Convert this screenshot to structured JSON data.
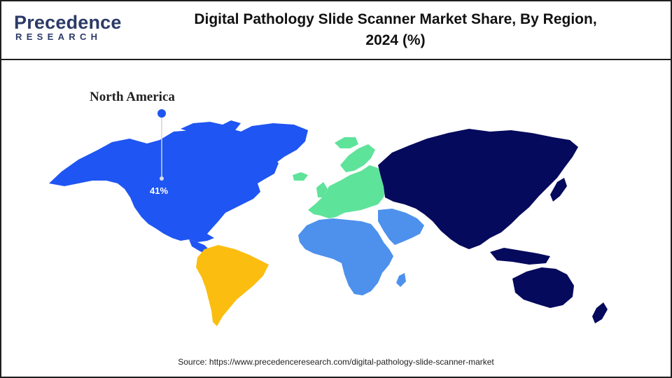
{
  "logo": {
    "word": "Precedence",
    "sub": "RESEARCH"
  },
  "header": {
    "title_line1": "Digital Pathology Slide Scanner Market Share, By Region,",
    "title_line2": "2024 (%)"
  },
  "colors": {
    "north_america": "#1f55f2",
    "latin_america": "#fbbd0f",
    "europe": "#5ee39a",
    "middle_east_africa": "#4d91ec",
    "asia_pacific": "#050a5c"
  },
  "chart_data": {
    "type": "map",
    "title": "Digital Pathology Slide Scanner Market Share, By Region, 2024 (%)",
    "regions": [
      {
        "name": "North America",
        "share_percent": 41,
        "label": "41%",
        "highlighted": true
      }
    ]
  },
  "callout": {
    "region_name": "North America",
    "share_text": "41%"
  },
  "footer": {
    "source": "Source: https://www.precedenceresearch.com/digital-pathology-slide-scanner-market"
  }
}
